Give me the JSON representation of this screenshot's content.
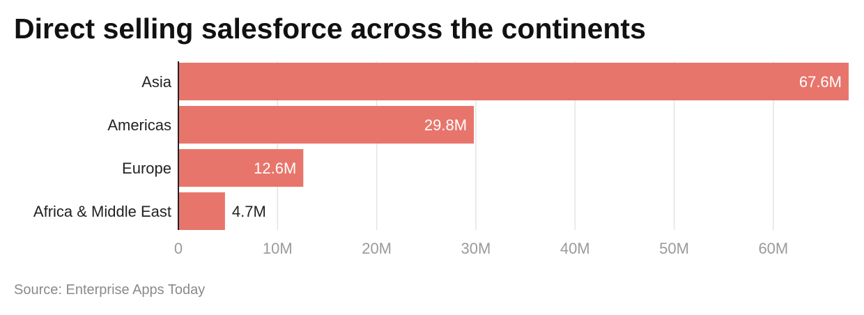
{
  "chart_data": {
    "type": "bar",
    "orientation": "horizontal",
    "title": "Direct selling salesforce across the continents",
    "categories": [
      "Asia",
      "Americas",
      "Europe",
      "Africa & Middle East"
    ],
    "values": [
      67.6,
      29.8,
      12.6,
      4.7
    ],
    "value_labels": [
      "67.6M",
      "29.8M",
      "12.6M",
      "4.7M"
    ],
    "unit": "M",
    "xlim": [
      0,
      67.6
    ],
    "x_ticks": [
      0,
      10,
      20,
      30,
      40,
      50,
      60
    ],
    "x_tick_labels": [
      "0",
      "10M",
      "20M",
      "30M",
      "40M",
      "50M",
      "60M"
    ],
    "grid": true,
    "legend": "none",
    "xlabel": "",
    "ylabel": ""
  },
  "source": "Source: Enterprise Apps Today",
  "colors": {
    "bar": "#e8756b",
    "grid": "#e3e3e3",
    "axis": "#222222",
    "label_inside": "#ffffff",
    "label_outside": "#222222"
  }
}
